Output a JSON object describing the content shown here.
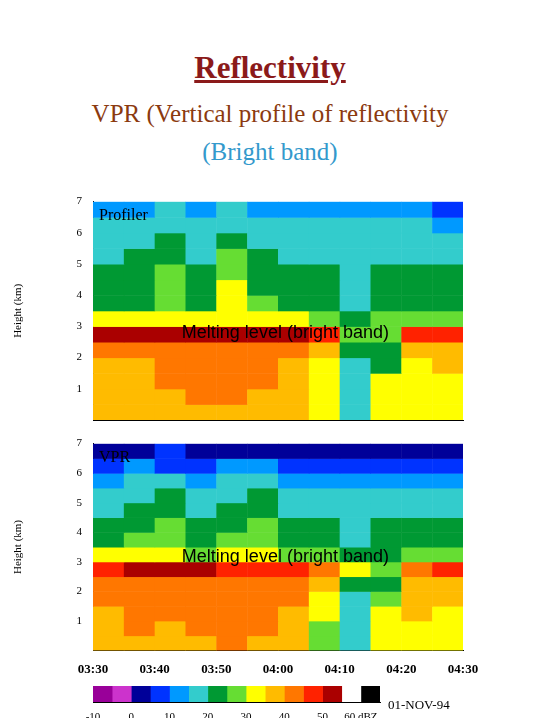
{
  "title": "Reflectivity",
  "subtitle": "VPR (Vertical profile of reflectivity",
  "subtitle_2": "(Bright band)",
  "date": "01-NOV-94",
  "colorbar": {
    "bins": [
      -10,
      -5,
      0,
      5,
      10,
      15,
      20,
      25,
      30,
      35,
      40,
      45,
      50,
      55,
      60,
      65
    ],
    "colors": [
      "#990099",
      "#cc33cc",
      "#000099",
      "#0033ff",
      "#0099ff",
      "#33cccc",
      "#009933",
      "#66dd33",
      "#ffff00",
      "#ffbb00",
      "#ff7700",
      "#ff2200",
      "#aa0000",
      "#ffffff",
      "#000000"
    ],
    "xlim": [
      -10,
      65
    ],
    "xticks": [
      -10,
      0,
      10,
      20,
      30,
      40,
      50,
      {
        "value": 60,
        "label": "60 dBZ"
      }
    ]
  },
  "chart_data": [
    {
      "type": "heatmap",
      "panel_label": "Profiler",
      "annotation": "Melting level (bright band)",
      "ylabel": "Height (km)",
      "xlim": [
        210,
        270
      ],
      "ylim": [
        0,
        7
      ],
      "yticks": [
        1,
        2,
        3,
        4,
        5,
        6,
        7
      ],
      "tick_labels": "y",
      "grid": false,
      "x_edges": [
        210,
        215,
        220,
        225,
        230,
        235,
        240,
        245,
        250,
        255,
        260,
        265,
        270
      ],
      "y_edges": [
        0,
        0.5,
        1,
        1.5,
        2,
        2.5,
        3,
        3.5,
        4,
        4.5,
        5,
        5.5,
        6,
        6.5,
        7
      ],
      "cells": [
        [
          35,
          35,
          38,
          38,
          38,
          35,
          35,
          30,
          15,
          30,
          30,
          30
        ],
        [
          35,
          35,
          38,
          40,
          40,
          38,
          35,
          30,
          15,
          30,
          32,
          32
        ],
        [
          35,
          38,
          40,
          40,
          42,
          40,
          38,
          32,
          15,
          32,
          32,
          32
        ],
        [
          38,
          38,
          40,
          42,
          42,
          40,
          38,
          32,
          18,
          20,
          32,
          35
        ],
        [
          40,
          40,
          42,
          42,
          42,
          42,
          40,
          35,
          20,
          22,
          35,
          35
        ],
        [
          50,
          52,
          52,
          52,
          52,
          50,
          50,
          45,
          25,
          25,
          45,
          45
        ],
        [
          30,
          32,
          32,
          30,
          32,
          32,
          30,
          28,
          20,
          28,
          28,
          28
        ],
        [
          22,
          22,
          28,
          22,
          30,
          25,
          22,
          22,
          18,
          22,
          22,
          22
        ],
        [
          22,
          22,
          28,
          20,
          30,
          22,
          20,
          20,
          18,
          22,
          20,
          20
        ],
        [
          20,
          22,
          25,
          20,
          28,
          20,
          20,
          20,
          18,
          20,
          20,
          20
        ],
        [
          18,
          20,
          22,
          18,
          25,
          20,
          18,
          18,
          18,
          18,
          18,
          18
        ],
        [
          18,
          18,
          20,
          18,
          22,
          18,
          18,
          18,
          15,
          18,
          18,
          15
        ],
        [
          15,
          15,
          18,
          15,
          18,
          15,
          15,
          15,
          15,
          15,
          15,
          12
        ],
        [
          12,
          12,
          15,
          12,
          15,
          12,
          12,
          12,
          12,
          12,
          10,
          5
        ]
      ]
    },
    {
      "type": "heatmap",
      "panel_label": "VPR",
      "annotation": "Melting level (bright band)",
      "ylabel": "Height (km)",
      "xlim": [
        210,
        270
      ],
      "ylim": [
        0,
        7
      ],
      "yticks": [
        1,
        2,
        3,
        4,
        5,
        6,
        7
      ],
      "xticks": [
        {
          "value": 210,
          "label": "03:30"
        },
        {
          "value": 220,
          "label": "03:40"
        },
        {
          "value": 230,
          "label": "03:50"
        },
        {
          "value": 240,
          "label": "04:00"
        },
        {
          "value": 250,
          "label": "04:10"
        },
        {
          "value": 260,
          "label": "04:20"
        },
        {
          "value": 270,
          "label": "04:30"
        }
      ],
      "grid": false,
      "x_edges": [
        210,
        215,
        220,
        225,
        230,
        235,
        240,
        245,
        250,
        255,
        260,
        265,
        270
      ],
      "y_edges": [
        0,
        0.5,
        1,
        1.5,
        2,
        2.5,
        3,
        3.5,
        4,
        4.5,
        5,
        5.5,
        6,
        6.5,
        7
      ],
      "cells": [
        [
          35,
          38,
          35,
          38,
          40,
          38,
          35,
          25,
          15,
          30,
          30,
          30
        ],
        [
          38,
          40,
          38,
          40,
          42,
          40,
          38,
          28,
          15,
          32,
          32,
          32
        ],
        [
          38,
          40,
          40,
          42,
          42,
          40,
          38,
          30,
          15,
          32,
          35,
          32
        ],
        [
          40,
          40,
          42,
          42,
          42,
          40,
          40,
          32,
          18,
          25,
          35,
          35
        ],
        [
          42,
          42,
          42,
          42,
          42,
          42,
          40,
          35,
          20,
          20,
          38,
          38
        ],
        [
          48,
          50,
          50,
          50,
          48,
          48,
          48,
          42,
          30,
          28,
          42,
          45
        ],
        [
          30,
          30,
          32,
          28,
          30,
          30,
          28,
          25,
          20,
          22,
          25,
          28
        ],
        [
          22,
          25,
          28,
          20,
          25,
          28,
          22,
          20,
          18,
          20,
          20,
          22
        ],
        [
          20,
          22,
          25,
          20,
          22,
          25,
          20,
          20,
          18,
          20,
          20,
          20
        ],
        [
          18,
          20,
          22,
          18,
          20,
          22,
          18,
          18,
          15,
          18,
          18,
          18
        ],
        [
          15,
          18,
          20,
          15,
          18,
          20,
          15,
          15,
          15,
          15,
          15,
          15
        ],
        [
          12,
          15,
          15,
          12,
          15,
          15,
          12,
          12,
          12,
          12,
          12,
          12
        ],
        [
          5,
          10,
          8,
          5,
          10,
          10,
          5,
          5,
          5,
          5,
          5,
          5
        ],
        [
          0,
          0,
          5,
          0,
          0,
          0,
          0,
          0,
          0,
          0,
          0,
          0
        ]
      ]
    }
  ]
}
